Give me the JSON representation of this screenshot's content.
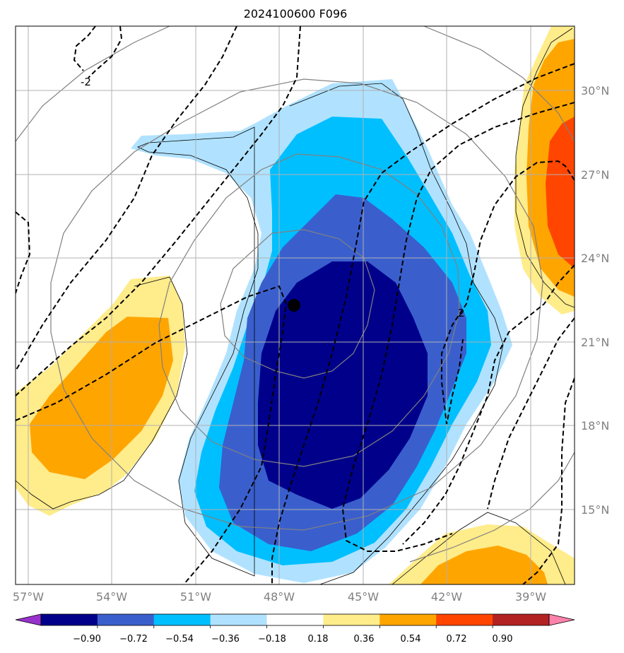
{
  "title": "2024100600 F096",
  "map": {
    "lon_labels": [
      "57°W",
      "54°W",
      "51°W",
      "48°W",
      "45°W",
      "42°W",
      "39°W"
    ],
    "lat_labels": [
      "30°N",
      "27°N",
      "24°N",
      "21°N",
      "18°N",
      "15°N"
    ],
    "storm_center": {
      "lon": "47.6°W",
      "lat": "22.3°N"
    },
    "contour_labels": [
      "-2",
      "2"
    ],
    "grid": true
  },
  "colorbar": {
    "ticks": [
      "−0.90",
      "−0.72",
      "−0.54",
      "−0.36",
      "−0.18",
      "0.18",
      "0.36",
      "0.54",
      "0.72",
      "0.90"
    ],
    "colors": [
      "#9932cc",
      "#00008b",
      "#3a5fcd",
      "#00bfff",
      "#b0e2ff",
      "#ffffff",
      "#ffec8b",
      "#ffa500",
      "#ff4500",
      "#b22222",
      "#ff82ab"
    ]
  },
  "chart_data": {
    "type": "heatmap",
    "title": "2024100600 F096",
    "levels": [
      -0.9,
      -0.72,
      -0.54,
      -0.36,
      -0.18,
      0.18,
      0.36,
      0.54,
      0.72,
      0.9
    ],
    "lon_range": [
      -57.5,
      -37.5
    ],
    "lat_range": [
      12.5,
      32.2
    ]
  }
}
